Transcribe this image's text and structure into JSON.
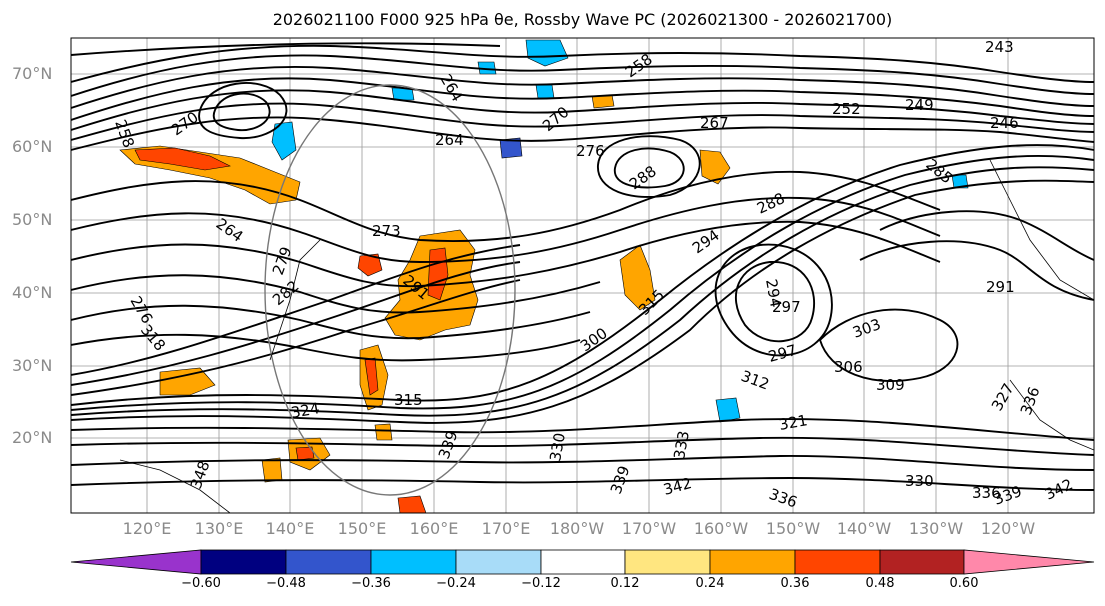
{
  "title": "2026021100 F000 925 hPa θe, Rossby Wave PC (2026021300 - 2026021700)",
  "map": {
    "lat_labels": [
      "70°N",
      "60°N",
      "50°N",
      "40°N",
      "30°N",
      "20°N"
    ],
    "lon_labels": [
      "120°E",
      "130°E",
      "140°E",
      "150°E",
      "160°E",
      "170°E",
      "180°W",
      "170°W",
      "160°W",
      "150°W",
      "140°W",
      "130°W",
      "120°W"
    ],
    "contour_labels": [
      "243",
      "249",
      "246",
      "252",
      "258",
      "258",
      "264",
      "264",
      "264",
      "267",
      "270",
      "270",
      "273",
      "276",
      "276",
      "279",
      "282",
      "285",
      "288",
      "288",
      "291",
      "291",
      "294",
      "294",
      "297",
      "297",
      "300",
      "303",
      "306",
      "309",
      "312",
      "315",
      "315",
      "318",
      "321",
      "324",
      "327",
      "330",
      "330",
      "333",
      "336",
      "336",
      "336",
      "339",
      "339",
      "339",
      "342",
      "342",
      "348"
    ]
  },
  "colorbar": {
    "ticks": [
      "−0.60",
      "−0.48",
      "−0.36",
      "−0.24",
      "−0.12",
      "0.12",
      "0.24",
      "0.36",
      "0.48",
      "0.60"
    ],
    "colors": [
      "#9933cc",
      "#000080",
      "#3355cc",
      "#00bfff",
      "#a8dcf8",
      "#ffffff",
      "#ffe680",
      "#ffa500",
      "#ff4500",
      "#b22222",
      "#ff88aa"
    ]
  }
}
